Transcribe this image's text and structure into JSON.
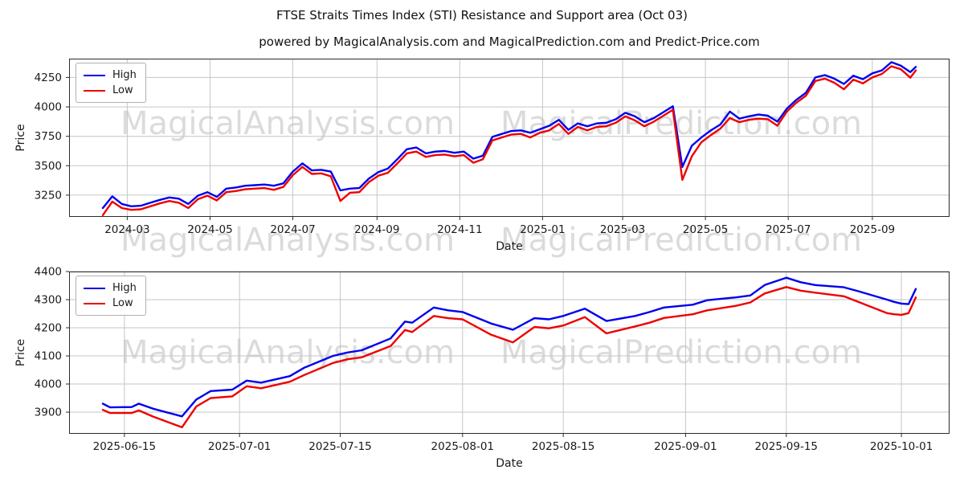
{
  "title": "FTSE Straits Times Index (STI) Resistance and Support area (Oct 03)",
  "subtitle": "powered by MagicalAnalysis.com and MagicalPrediction.com and Predict-Price.com",
  "watermarks": {
    "left": "MagicalAnalysis.com",
    "right": "MagicalPrediction.com"
  },
  "colors": {
    "high_line": "#0000ee",
    "low_line": "#ee0000",
    "grid": "#c6c6c6",
    "spine": "#2b2b2b",
    "tick_text": "#1a1a1a"
  },
  "chart_data": [
    {
      "type": "line",
      "title": "",
      "xlabel": "Date",
      "ylabel": "Price",
      "grid": true,
      "legend_position": "upper left",
      "ylim": [
        3065,
        4410
      ],
      "yticks": [
        3250,
        3500,
        3750,
        4000,
        4250
      ],
      "xticks": [
        {
          "value": "2024-03-01",
          "label": "2024-03"
        },
        {
          "value": "2024-05-01",
          "label": "2024-05"
        },
        {
          "value": "2024-07-01",
          "label": "2024-07"
        },
        {
          "value": "2024-09-01",
          "label": "2024-09"
        },
        {
          "value": "2024-11-01",
          "label": "2024-11"
        },
        {
          "value": "2025-01-01",
          "label": "2025-01"
        },
        {
          "value": "2025-03-01",
          "label": "2025-03"
        },
        {
          "value": "2025-05-01",
          "label": "2025-05"
        },
        {
          "value": "2025-07-01",
          "label": "2025-07"
        },
        {
          "value": "2025-09-01",
          "label": "2025-09"
        }
      ],
      "x": [
        "2024-02-12",
        "2024-02-19",
        "2024-02-26",
        "2024-03-04",
        "2024-03-11",
        "2024-03-18",
        "2024-03-25",
        "2024-04-01",
        "2024-04-08",
        "2024-04-15",
        "2024-04-22",
        "2024-04-29",
        "2024-05-06",
        "2024-05-13",
        "2024-05-20",
        "2024-05-27",
        "2024-06-03",
        "2024-06-10",
        "2024-06-17",
        "2024-06-24",
        "2024-07-01",
        "2024-07-08",
        "2024-07-15",
        "2024-07-22",
        "2024-07-29",
        "2024-08-05",
        "2024-08-12",
        "2024-08-19",
        "2024-08-26",
        "2024-09-02",
        "2024-09-09",
        "2024-09-16",
        "2024-09-23",
        "2024-09-30",
        "2024-10-07",
        "2024-10-14",
        "2024-10-21",
        "2024-10-28",
        "2024-11-04",
        "2024-11-11",
        "2024-11-18",
        "2024-11-25",
        "2024-12-02",
        "2024-12-09",
        "2024-12-16",
        "2024-12-23",
        "2024-12-30",
        "2025-01-06",
        "2025-01-13",
        "2025-01-20",
        "2025-01-27",
        "2025-02-03",
        "2025-02-10",
        "2025-02-17",
        "2025-02-24",
        "2025-03-03",
        "2025-03-10",
        "2025-03-17",
        "2025-03-24",
        "2025-03-31",
        "2025-04-07",
        "2025-04-14",
        "2025-04-21",
        "2025-04-28",
        "2025-05-05",
        "2025-05-12",
        "2025-05-19",
        "2025-05-26",
        "2025-06-02",
        "2025-06-09",
        "2025-06-16",
        "2025-06-23",
        "2025-06-30",
        "2025-07-07",
        "2025-07-14",
        "2025-07-21",
        "2025-07-28",
        "2025-08-04",
        "2025-08-11",
        "2025-08-18",
        "2025-08-25",
        "2025-09-01",
        "2025-09-08",
        "2025-09-15",
        "2025-09-22",
        "2025-09-29",
        "2025-10-03"
      ],
      "series": [
        {
          "name": "High",
          "color": "#0000ee",
          "values": [
            3140,
            3240,
            3175,
            3155,
            3160,
            3185,
            3210,
            3230,
            3220,
            3175,
            3245,
            3275,
            3235,
            3305,
            3315,
            3330,
            3335,
            3340,
            3330,
            3350,
            3450,
            3520,
            3460,
            3465,
            3450,
            3290,
            3305,
            3310,
            3390,
            3445,
            3475,
            3555,
            3640,
            3655,
            3605,
            3620,
            3625,
            3610,
            3620,
            3560,
            3585,
            3745,
            3770,
            3795,
            3800,
            3780,
            3810,
            3840,
            3890,
            3805,
            3860,
            3835,
            3860,
            3865,
            3895,
            3950,
            3920,
            3870,
            3905,
            3955,
            4005,
            3490,
            3670,
            3740,
            3800,
            3850,
            3960,
            3900,
            3920,
            3935,
            3925,
            3875,
            3985,
            4060,
            4120,
            4250,
            4270,
            4240,
            4195,
            4265,
            4235,
            4285,
            4310,
            4380,
            4350,
            4295,
            4340
          ]
        },
        {
          "name": "Low",
          "color": "#ee0000",
          "values": [
            3080,
            3195,
            3140,
            3125,
            3130,
            3155,
            3180,
            3200,
            3185,
            3140,
            3215,
            3245,
            3205,
            3275,
            3285,
            3300,
            3305,
            3310,
            3295,
            3320,
            3420,
            3490,
            3430,
            3435,
            3410,
            3200,
            3270,
            3275,
            3360,
            3415,
            3440,
            3520,
            3605,
            3620,
            3575,
            3590,
            3595,
            3580,
            3590,
            3525,
            3555,
            3715,
            3740,
            3765,
            3770,
            3740,
            3780,
            3800,
            3855,
            3770,
            3830,
            3800,
            3830,
            3835,
            3865,
            3920,
            3885,
            3835,
            3875,
            3925,
            3975,
            3380,
            3580,
            3700,
            3760,
            3815,
            3905,
            3870,
            3890,
            3900,
            3895,
            3840,
            3960,
            4035,
            4095,
            4220,
            4240,
            4205,
            4150,
            4232,
            4200,
            4250,
            4280,
            4345,
            4320,
            4248,
            4310
          ]
        }
      ]
    },
    {
      "type": "line",
      "title": "",
      "xlabel": "Date",
      "ylabel": "Price",
      "grid": true,
      "legend_position": "upper left",
      "ylim": [
        3823,
        4400
      ],
      "yticks": [
        3900,
        4000,
        4100,
        4200,
        4300,
        4400
      ],
      "xticks": [
        {
          "value": "2025-06-15",
          "label": "2025-06-15"
        },
        {
          "value": "2025-07-01",
          "label": "2025-07-01"
        },
        {
          "value": "2025-07-15",
          "label": "2025-07-15"
        },
        {
          "value": "2025-08-01",
          "label": "2025-08-01"
        },
        {
          "value": "2025-08-15",
          "label": "2025-08-15"
        },
        {
          "value": "2025-09-01",
          "label": "2025-09-01"
        },
        {
          "value": "2025-09-15",
          "label": "2025-09-15"
        },
        {
          "value": "2025-10-01",
          "label": "2025-10-01"
        }
      ],
      "x": [
        "2025-06-12",
        "2025-06-13",
        "2025-06-16",
        "2025-06-17",
        "2025-06-19",
        "2025-06-23",
        "2025-06-25",
        "2025-06-27",
        "2025-06-30",
        "2025-07-02",
        "2025-07-04",
        "2025-07-08",
        "2025-07-10",
        "2025-07-14",
        "2025-07-16",
        "2025-07-18",
        "2025-07-22",
        "2025-07-24",
        "2025-07-25",
        "2025-07-28",
        "2025-07-30",
        "2025-08-01",
        "2025-08-05",
        "2025-08-08",
        "2025-08-11",
        "2025-08-13",
        "2025-08-15",
        "2025-08-18",
        "2025-08-21",
        "2025-08-25",
        "2025-08-27",
        "2025-08-29",
        "2025-09-02",
        "2025-09-04",
        "2025-09-08",
        "2025-09-10",
        "2025-09-12",
        "2025-09-15",
        "2025-09-17",
        "2025-09-19",
        "2025-09-23",
        "2025-09-25",
        "2025-09-29",
        "2025-09-30",
        "2025-10-01",
        "2025-10-02",
        "2025-10-03"
      ],
      "series": [
        {
          "name": "High",
          "color": "#0000ee",
          "values": [
            3930,
            3917,
            3918,
            3930,
            3912,
            3885,
            3945,
            3975,
            3980,
            4012,
            4005,
            4028,
            4058,
            4100,
            4112,
            4120,
            4162,
            4222,
            4218,
            4272,
            4262,
            4256,
            4215,
            4193,
            4234,
            4230,
            4242,
            4268,
            4224,
            4242,
            4256,
            4272,
            4282,
            4298,
            4308,
            4315,
            4352,
            4378,
            4362,
            4352,
            4344,
            4330,
            4300,
            4292,
            4286,
            4284,
            4338
          ]
        },
        {
          "name": "Low",
          "color": "#ee0000",
          "values": [
            3908,
            3897,
            3897,
            3906,
            3884,
            3846,
            3920,
            3950,
            3956,
            3992,
            3985,
            4008,
            4032,
            4075,
            4088,
            4095,
            4135,
            4192,
            4185,
            4242,
            4234,
            4230,
            4175,
            4148,
            4203,
            4198,
            4208,
            4238,
            4180,
            4205,
            4218,
            4235,
            4248,
            4262,
            4278,
            4290,
            4322,
            4345,
            4332,
            4325,
            4312,
            4292,
            4252,
            4248,
            4246,
            4252,
            4308
          ]
        }
      ]
    }
  ]
}
